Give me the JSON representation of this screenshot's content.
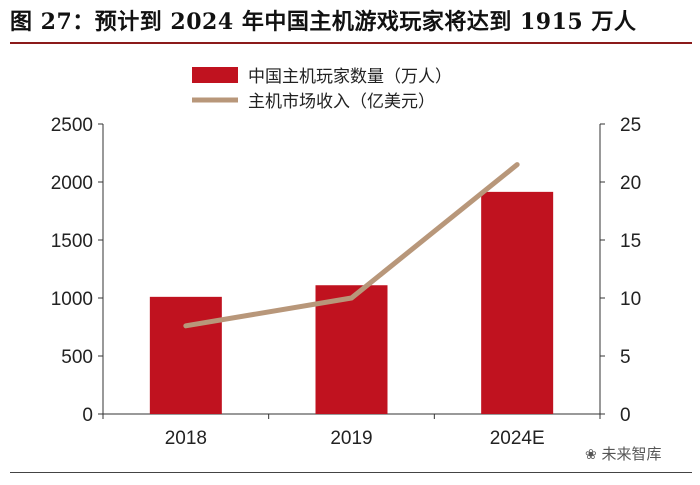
{
  "figure": {
    "title": "图 27：预计到 2024 年中国主机游戏玩家将达到 1915 万人",
    "watermark": "未来智库"
  },
  "colors": {
    "bar": "#c0121f",
    "line": "#b8977a",
    "title_rule": "#8b1a1a",
    "axis": "#333333",
    "text": "#222222"
  },
  "chart_data": {
    "type": "bar",
    "categories": [
      "2018",
      "2019",
      "2024E"
    ],
    "series": [
      {
        "name": "中国主机玩家数量（万人）",
        "type": "bar",
        "axis": "left",
        "values": [
          1010,
          1110,
          1915
        ]
      },
      {
        "name": "主机市场收入（亿美元）",
        "type": "line",
        "axis": "right",
        "values": [
          7.6,
          10.0,
          21.5
        ]
      }
    ],
    "y_left": {
      "min": 0,
      "max": 2500,
      "ticks": [
        0,
        500,
        1000,
        1500,
        2000,
        2500
      ]
    },
    "y_right": {
      "min": 0,
      "max": 25,
      "ticks": [
        0,
        5,
        10,
        15,
        20,
        25
      ]
    },
    "grid": false,
    "legend_position": "top-center"
  }
}
